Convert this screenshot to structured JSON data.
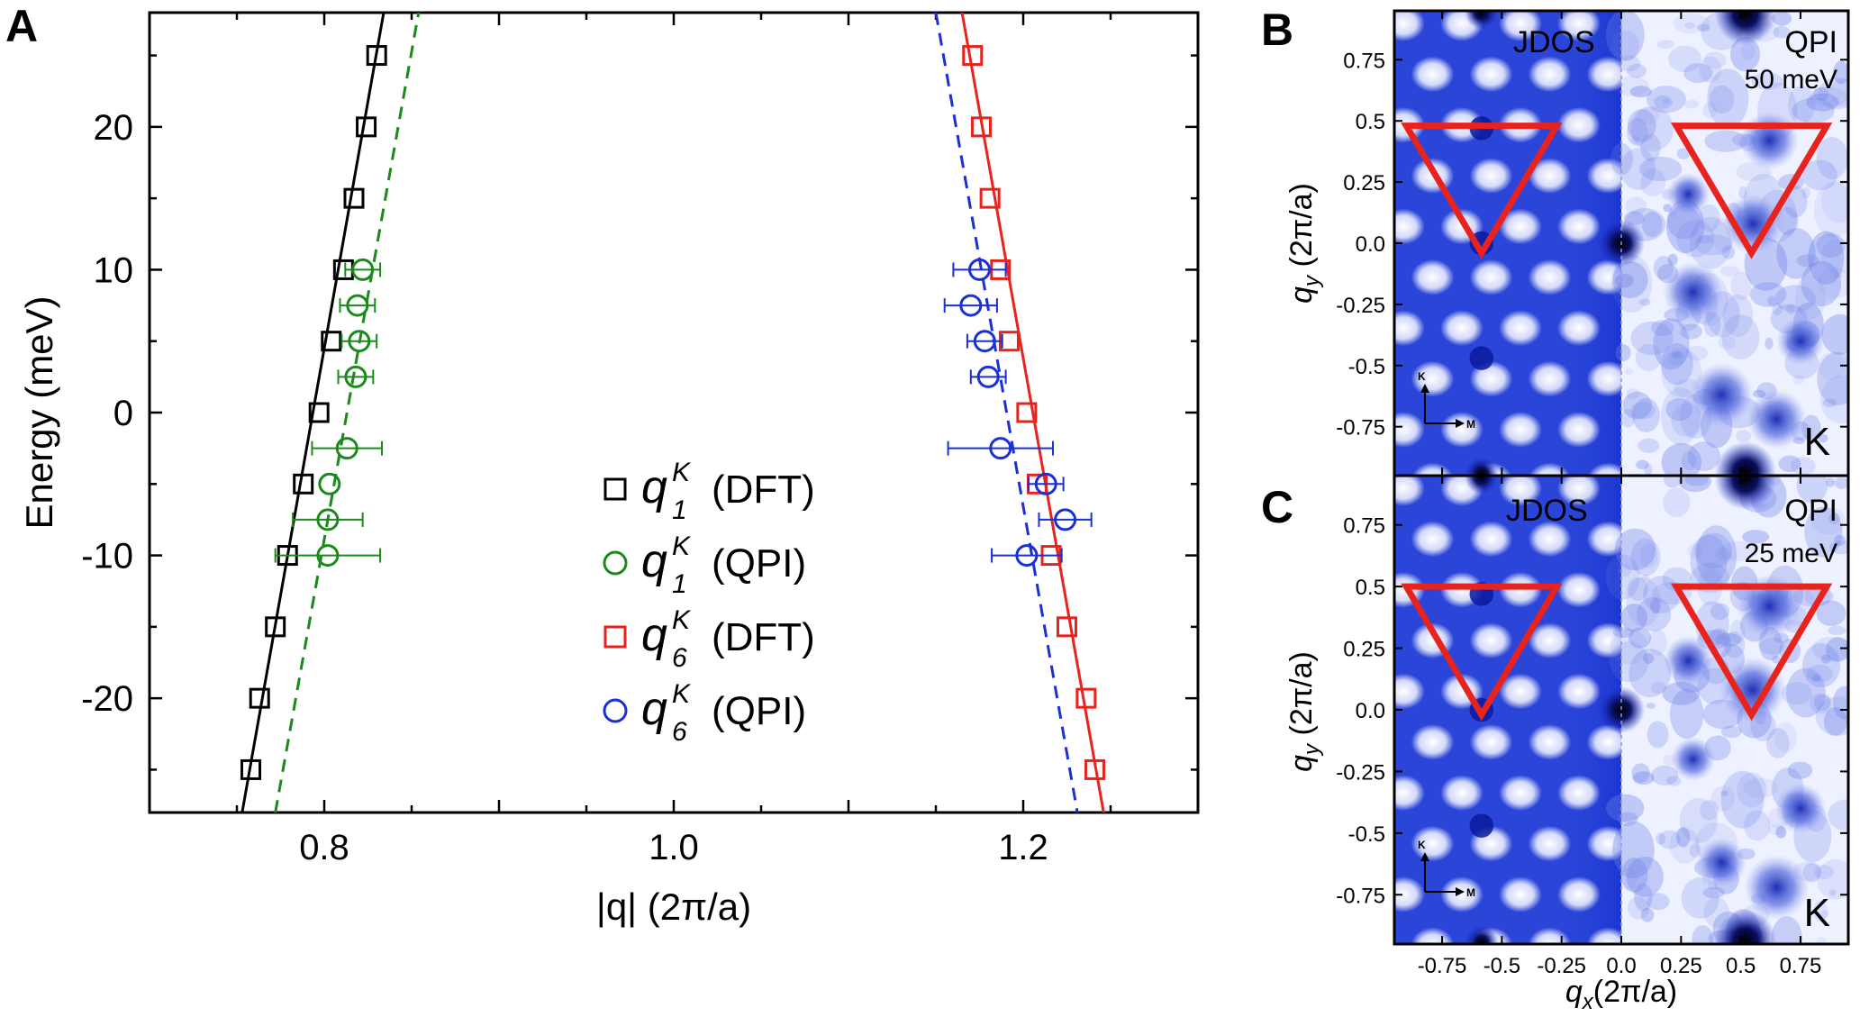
{
  "panel_letters": {
    "a": "A",
    "b": "B",
    "c": "C"
  },
  "colors": {
    "black": "#000000",
    "green": "#1a8a1a",
    "red": "#e8231e",
    "blue": "#1a2fd6",
    "map_blue": "#2a45d8",
    "map_pale": "#eef1ff",
    "triangle": "#e8231e"
  },
  "chart_data": [
    {
      "type": "scatter",
      "panel": "A",
      "xlabel": "|q| (2π/a)",
      "ylabel": "Energy (meV)",
      "xlim": [
        0.7,
        1.3
      ],
      "ylim": [
        -28,
        28
      ],
      "xticks": [
        0.8,
        1.0,
        1.2
      ],
      "xtick_labels": [
        "0.8",
        "1.0",
        "1.2"
      ],
      "yticks": [
        -20,
        -10,
        0,
        10,
        20
      ],
      "ytick_labels": [
        "-20",
        "-10",
        "0",
        "10",
        "20"
      ],
      "legend_position": "bottom-center",
      "series": [
        {
          "name": "q_1^K (DFT)",
          "legend_label": "(DFT)",
          "q_sub": "1",
          "q_sup": "K",
          "marker": "square",
          "color": "#000000",
          "points": [
            [
              0.758,
              -25
            ],
            [
              0.763,
              -20
            ],
            [
              0.772,
              -15
            ],
            [
              0.779,
              -10
            ],
            [
              0.788,
              -5
            ],
            [
              0.797,
              0
            ],
            [
              0.804,
              5
            ],
            [
              0.811,
              10
            ],
            [
              0.817,
              15
            ],
            [
              0.824,
              20
            ],
            [
              0.83,
              25
            ]
          ]
        },
        {
          "name": "q_1^K (QPI)",
          "legend_label": "(QPI)",
          "q_sub": "1",
          "q_sup": "K",
          "marker": "circle",
          "color": "#1a8a1a",
          "points": [
            [
              0.802,
              -10,
              0.03
            ],
            [
              0.802,
              -7.5,
              0.02
            ],
            [
              0.803,
              -5,
              0.0
            ],
            [
              0.813,
              -2.5,
              0.02
            ],
            [
              0.818,
              2.5,
              0.01
            ],
            [
              0.82,
              5,
              0.01
            ],
            [
              0.819,
              7.5,
              0.01
            ],
            [
              0.822,
              10,
              0.01
            ]
          ]
        },
        {
          "name": "q_6^K (DFT)",
          "legend_label": "(DFT)",
          "q_sub": "6",
          "q_sup": "K",
          "marker": "square",
          "color": "#e8231e",
          "points": [
            [
              1.171,
              25
            ],
            [
              1.176,
              20
            ],
            [
              1.181,
              15
            ],
            [
              1.187,
              10
            ],
            [
              1.192,
              5
            ],
            [
              1.202,
              0
            ],
            [
              1.208,
              -5
            ],
            [
              1.216,
              -10
            ],
            [
              1.225,
              -15
            ],
            [
              1.236,
              -20
            ],
            [
              1.241,
              -25
            ]
          ]
        },
        {
          "name": "q_6^K (QPI)",
          "legend_label": "(QPI)",
          "q_sub": "6",
          "q_sup": "K",
          "marker": "circle",
          "color": "#1a2fd6",
          "points": [
            [
              1.175,
              10,
              0.015
            ],
            [
              1.17,
              7.5,
              0.015
            ],
            [
              1.178,
              5,
              0.01
            ],
            [
              1.18,
              2.5,
              0.01
            ],
            [
              1.187,
              -2.5,
              0.03
            ],
            [
              1.213,
              -5,
              0.01
            ],
            [
              1.224,
              -7.5,
              0.015
            ],
            [
              1.202,
              -10,
              0.02
            ]
          ]
        }
      ],
      "fit_lines": [
        {
          "color": "#000000",
          "style": "solid",
          "points": [
            [
              0.753,
              -28
            ],
            [
              0.834,
              28
            ]
          ]
        },
        {
          "color": "#1a8a1a",
          "style": "dashed",
          "points": [
            [
              0.772,
              -28
            ],
            [
              0.854,
              28
            ]
          ]
        },
        {
          "color": "#e8231e",
          "style": "solid",
          "points": [
            [
              1.165,
              28
            ],
            [
              1.246,
              -28
            ]
          ]
        },
        {
          "color": "#1a2fd6",
          "style": "dashed",
          "points": [
            [
              1.15,
              28
            ],
            [
              1.231,
              -28
            ]
          ]
        }
      ]
    },
    {
      "type": "heatmap",
      "panel": "B",
      "left_label": "JDOS",
      "right_label": "QPI",
      "energy_label": "50 meV",
      "corner_label": "K",
      "ylabel": "q_y (2π/a)",
      "yticks": [
        0.75,
        0.5,
        0.25,
        0.0,
        -0.25,
        -0.5,
        -0.75
      ],
      "ytick_labels": [
        "0.75",
        "0.5",
        "0.25",
        "0.0",
        "-0.25",
        "-0.5",
        "-0.75"
      ],
      "xlim": [
        -0.95,
        0.95
      ],
      "ylim": [
        -0.95,
        0.95
      ],
      "triangles": [
        {
          "vertices": [
            [
              -0.9,
              0.48
            ],
            [
              -0.27,
              0.48
            ],
            [
              -0.585,
              -0.04
            ]
          ]
        },
        {
          "vertices": [
            [
              0.23,
              0.48
            ],
            [
              0.86,
              0.48
            ],
            [
              0.545,
              -0.04
            ]
          ]
        }
      ],
      "axis_glyph": {
        "up": "K",
        "right": "M"
      }
    },
    {
      "type": "heatmap",
      "panel": "C",
      "left_label": "JDOS",
      "right_label": "QPI",
      "energy_label": "25 meV",
      "corner_label": "K",
      "ylabel": "q_y (2π/a)",
      "xlabel": "q_x(2π/a)",
      "yticks": [
        0.75,
        0.5,
        0.25,
        0.0,
        -0.25,
        -0.5,
        -0.75
      ],
      "ytick_labels": [
        "0.75",
        "0.5",
        "0.25",
        "0.0",
        "-0.25",
        "-0.5",
        "-0.75"
      ],
      "xticks": [
        -0.75,
        -0.5,
        -0.25,
        0.0,
        0.25,
        0.5,
        0.75
      ],
      "xtick_labels": [
        "-0.75",
        "-0.5",
        "-0.25",
        "0.0",
        "0.25",
        "0.5",
        "0.75"
      ],
      "xlim": [
        -0.95,
        0.95
      ],
      "ylim": [
        -0.95,
        0.95
      ],
      "triangles": [
        {
          "vertices": [
            [
              -0.9,
              0.5
            ],
            [
              -0.27,
              0.5
            ],
            [
              -0.585,
              -0.02
            ]
          ]
        },
        {
          "vertices": [
            [
              0.23,
              0.5
            ],
            [
              0.86,
              0.5
            ],
            [
              0.545,
              -0.02
            ]
          ]
        }
      ],
      "axis_glyph": {
        "up": "K",
        "right": "M"
      }
    }
  ]
}
